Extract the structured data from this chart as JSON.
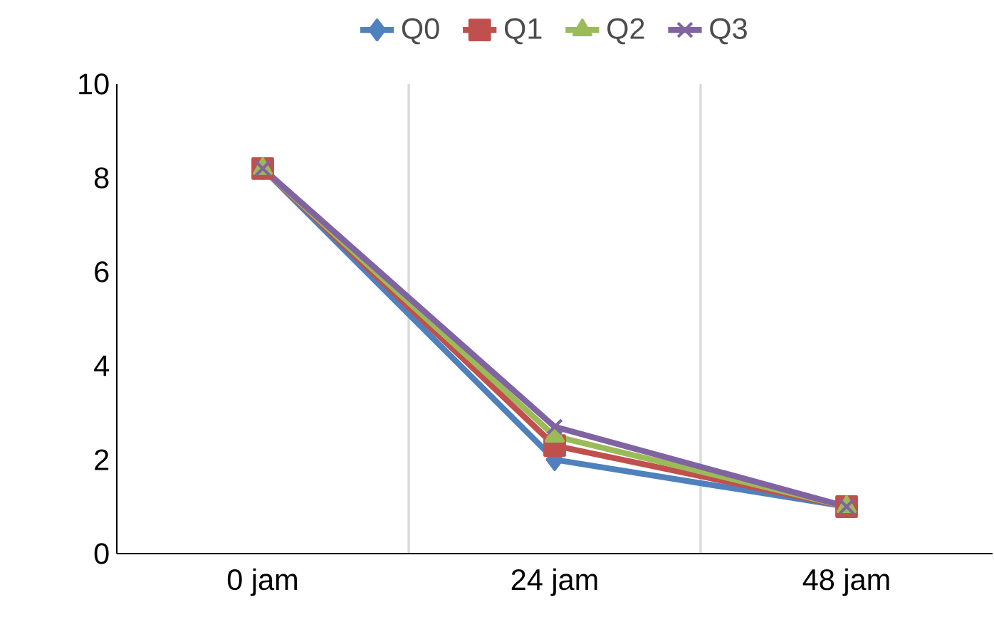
{
  "chart_data": {
    "type": "line",
    "categories": [
      "0 jam",
      "24 jam",
      "48 jam"
    ],
    "series": [
      {
        "name": "Q0",
        "color": "#4f81bd",
        "marker": "diamond",
        "values": [
          8.2,
          2.0,
          1.0
        ]
      },
      {
        "name": "Q1",
        "color": "#c0504d",
        "marker": "square",
        "values": [
          8.2,
          2.3,
          1.0
        ]
      },
      {
        "name": "Q2",
        "color": "#9bbb59",
        "marker": "triangle",
        "values": [
          8.2,
          2.5,
          1.0
        ]
      },
      {
        "name": "Q3",
        "color": "#8064a2",
        "marker": "cross",
        "values": [
          8.2,
          2.7,
          1.0
        ]
      }
    ],
    "ylim": [
      0,
      10
    ],
    "yticks": [
      0,
      2,
      4,
      6,
      8,
      10
    ],
    "grid": "x",
    "legend": "top"
  }
}
